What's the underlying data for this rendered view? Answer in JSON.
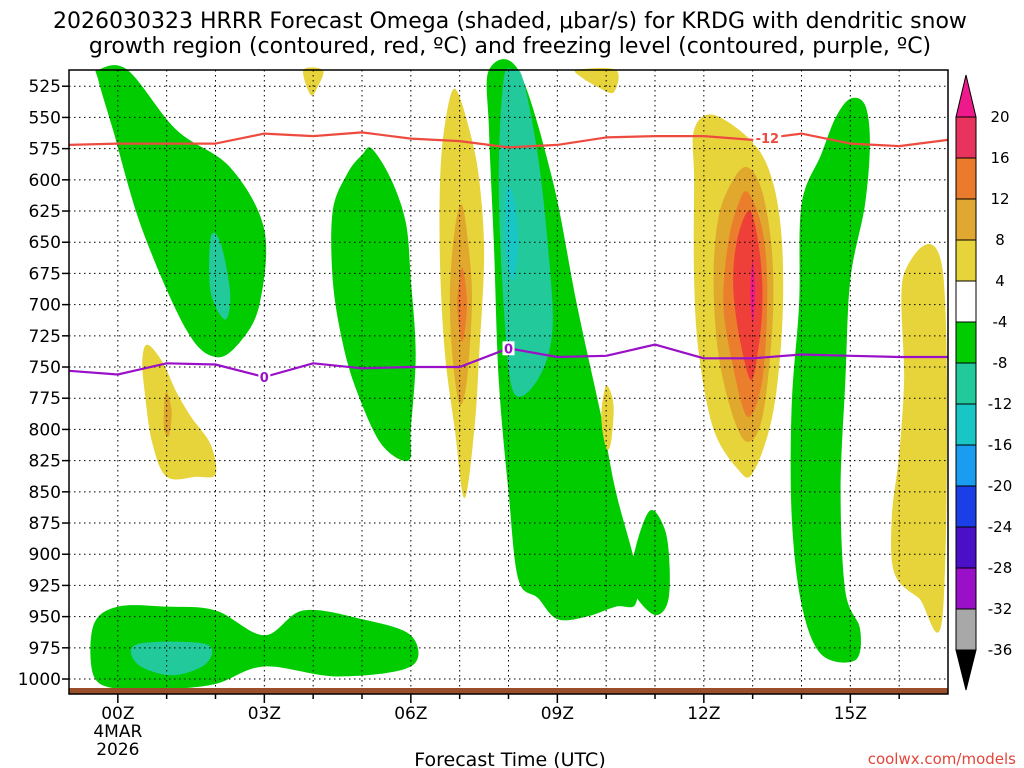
{
  "colors": {
    "green": "#00cc00",
    "teal": "#22c99a",
    "cyan": "#18c6c6",
    "yellow": "#e6d43a",
    "gold": "#e0a82c",
    "orange": "#ea7e2c",
    "red": "#ee4038",
    "magenta": "#ee1a8c",
    "dgz": "#ee4b40",
    "freezing": "#9a10c8",
    "ground": "#9a4e2a",
    "credit": "#e5463c"
  },
  "header": {
    "title_line1": "2026030323 HRRR Forecast Omega (shaded, μbar/s) for KRDG with dendritic snow",
    "title_line2": "growth region (contoured, red, ºC) and freezing level (contoured, purple, ºC)"
  },
  "footer": {
    "credit": "coolwx.com/models"
  },
  "chart_data": {
    "type": "time-height contour",
    "title": "2026030323 HRRR Forecast Omega (shaded, μbar/s) for KRDG with dendritic snow growth region (contoured, red, ºC) and freezing level (contoured, purple, ºC)",
    "xlabel": "Forecast Time (UTC)",
    "ylabel": "",
    "x_range_hours": [
      -1,
      17
    ],
    "y_range_hpa": [
      512,
      1012
    ],
    "y_ticks": [
      "525",
      "550",
      "575",
      "600",
      "625",
      "650",
      "675",
      "700",
      "725",
      "750",
      "775",
      "800",
      "825",
      "850",
      "875",
      "900",
      "925",
      "950",
      "975",
      "1000"
    ],
    "x_ticks": [
      {
        "hour": 0,
        "label": "00Z",
        "date": "4MAR",
        "year": "2026"
      },
      {
        "hour": 3,
        "label": "03Z"
      },
      {
        "hour": 6,
        "label": "06Z"
      },
      {
        "hour": 9,
        "label": "09Z"
      },
      {
        "hour": 12,
        "label": "12Z"
      },
      {
        "hour": 15,
        "label": "15Z"
      }
    ],
    "colorbar": {
      "labels": [
        "20",
        "16",
        "12",
        "8",
        "4",
        "-4",
        "-8",
        "-12",
        "-16",
        "-20",
        "-24",
        "-28",
        "-32",
        "-36"
      ],
      "bin_colors": [
        "#e8335e",
        "#ea7a2c",
        "#e0a830",
        "#e6d43a",
        "#ffffff",
        "#00cc00",
        "#22c99a",
        "#18c6c6",
        "#1a9cf0",
        "#1a3fe6",
        "#4a10c8",
        "#9a10c8",
        "#a8a8a8"
      ],
      "top_arrow": "#ee1a8c",
      "bottom_arrow": "#000000"
    },
    "contour_dgz": {
      "label": "-12",
      "color": "#ee4b40",
      "points": [
        [
          -1,
          572
        ],
        [
          0,
          571
        ],
        [
          2,
          571
        ],
        [
          3,
          563
        ],
        [
          4,
          565
        ],
        [
          5,
          562
        ],
        [
          6,
          567
        ],
        [
          7,
          569
        ],
        [
          8,
          574
        ],
        [
          9,
          572
        ],
        [
          10,
          566
        ],
        [
          11,
          565
        ],
        [
          12,
          565
        ],
        [
          13,
          568
        ],
        [
          14,
          563
        ],
        [
          15,
          571
        ],
        [
          16,
          573
        ],
        [
          17,
          568
        ]
      ]
    },
    "contour_freezing": {
      "label": "0",
      "color": "#9a10c8",
      "points": [
        [
          -1,
          753
        ],
        [
          0,
          756
        ],
        [
          1,
          747
        ],
        [
          2,
          748
        ],
        [
          3,
          758
        ],
        [
          4,
          747
        ],
        [
          5,
          751
        ],
        [
          6,
          750
        ],
        [
          7,
          750
        ],
        [
          8,
          735
        ],
        [
          9,
          742
        ],
        [
          10,
          741
        ],
        [
          11,
          732
        ],
        [
          12,
          743
        ],
        [
          13,
          743
        ],
        [
          14,
          740
        ],
        [
          15,
          741
        ],
        [
          16,
          742
        ],
        [
          17,
          742
        ]
      ]
    },
    "omega_regions": [
      {
        "level": -4,
        "color": "#00cc00",
        "points": [
          [
            -0.4,
            512
          ],
          [
            0.2,
            512
          ],
          [
            1.2,
            560
          ],
          [
            2.3,
            590
          ],
          [
            3.0,
            640
          ],
          [
            2.9,
            700
          ],
          [
            2.5,
            730
          ],
          [
            2.0,
            742
          ],
          [
            1.4,
            720
          ],
          [
            0.5,
            640
          ],
          [
            -0.1,
            560
          ],
          [
            -0.4,
            520
          ]
        ]
      },
      {
        "level": -8,
        "color": "#22c99a",
        "points": [
          [
            1.9,
            646
          ],
          [
            2.1,
            650
          ],
          [
            2.3,
            690
          ],
          [
            2.2,
            712
          ],
          [
            1.9,
            690
          ]
        ]
      },
      {
        "level": -4,
        "color": "#00cc00",
        "points": [
          [
            -0.5,
            957
          ],
          [
            0.0,
            942
          ],
          [
            1.0,
            942
          ],
          [
            2.0,
            945
          ],
          [
            3.0,
            965
          ],
          [
            3.8,
            945
          ],
          [
            5.0,
            952
          ],
          [
            6.0,
            965
          ],
          [
            6.0,
            990
          ],
          [
            4.5,
            998
          ],
          [
            3.0,
            990
          ],
          [
            2.0,
            1004
          ],
          [
            1.0,
            1008
          ],
          [
            0.0,
            1008
          ],
          [
            -0.5,
            997
          ]
        ]
      },
      {
        "level": -8,
        "color": "#22c99a",
        "points": [
          [
            0.4,
            972
          ],
          [
            1.8,
            972
          ],
          [
            1.8,
            988
          ],
          [
            1.1,
            997
          ],
          [
            0.4,
            988
          ]
        ]
      },
      {
        "level": -4,
        "color": "#00cc00",
        "points": [
          [
            5.2,
            575
          ],
          [
            5.6,
            600
          ],
          [
            5.9,
            635
          ],
          [
            6.0,
            680
          ],
          [
            6.1,
            740
          ],
          [
            6.0,
            800
          ],
          [
            5.95,
            825
          ],
          [
            5.4,
            812
          ],
          [
            4.9,
            770
          ],
          [
            4.6,
            730
          ],
          [
            4.4,
            680
          ],
          [
            4.4,
            625
          ],
          [
            4.7,
            595
          ],
          [
            5.0,
            580
          ]
        ]
      },
      {
        "level": 4,
        "color": "#e6d43a",
        "points": [
          [
            6.9,
            527
          ],
          [
            7.2,
            560
          ],
          [
            7.4,
            600
          ],
          [
            7.5,
            660
          ],
          [
            7.4,
            740
          ],
          [
            7.3,
            800
          ],
          [
            7.1,
            855
          ],
          [
            6.9,
            800
          ],
          [
            6.7,
            740
          ],
          [
            6.6,
            670
          ],
          [
            6.6,
            600
          ],
          [
            6.7,
            555
          ]
        ]
      },
      {
        "level": 8,
        "color": "#e0a82c",
        "points": [
          [
            7.05,
            620
          ],
          [
            7.2,
            660
          ],
          [
            7.25,
            700
          ],
          [
            7.15,
            760
          ],
          [
            7.0,
            780
          ],
          [
            6.85,
            740
          ],
          [
            6.8,
            690
          ],
          [
            6.9,
            640
          ]
        ]
      },
      {
        "level": 12,
        "color": "#ea7e2c",
        "points": [
          [
            7.05,
            670
          ],
          [
            7.15,
            700
          ],
          [
            7.05,
            730
          ],
          [
            6.95,
            700
          ]
        ]
      },
      {
        "level": -4,
        "color": "#00cc00",
        "points": [
          [
            7.6,
            512
          ],
          [
            8.2,
            512
          ],
          [
            8.9,
            600
          ],
          [
            9.4,
            700
          ],
          [
            9.9,
            790
          ],
          [
            10.2,
            850
          ],
          [
            10.6,
            910
          ],
          [
            10.6,
            940
          ],
          [
            10.2,
            942
          ],
          [
            9.6,
            950
          ],
          [
            9.0,
            952
          ],
          [
            8.6,
            935
          ],
          [
            8.2,
            920
          ],
          [
            8.0,
            850
          ],
          [
            7.8,
            760
          ],
          [
            7.7,
            650
          ],
          [
            7.6,
            560
          ]
        ]
      },
      {
        "level": -8,
        "color": "#22c99a",
        "points": [
          [
            7.9,
            520
          ],
          [
            8.1,
            512
          ],
          [
            8.3,
            520
          ],
          [
            8.6,
            580
          ],
          [
            8.8,
            650
          ],
          [
            8.9,
            720
          ],
          [
            8.6,
            760
          ],
          [
            8.1,
            770
          ],
          [
            7.9,
            700
          ],
          [
            7.8,
            600
          ]
        ]
      },
      {
        "level": -12,
        "color": "#18c6c6",
        "points": [
          [
            7.95,
            610
          ],
          [
            8.1,
            612
          ],
          [
            8.2,
            650
          ],
          [
            8.1,
            680
          ],
          [
            7.95,
            660
          ]
        ]
      },
      {
        "level": -4,
        "color": "#00cc00",
        "points": [
          [
            10.9,
            865
          ],
          [
            11.2,
            880
          ],
          [
            11.3,
            910
          ],
          [
            11.25,
            940
          ],
          [
            10.95,
            948
          ],
          [
            10.5,
            925
          ],
          [
            10.6,
            895
          ]
        ]
      },
      {
        "level": 4,
        "color": "#e6d43a",
        "points": [
          [
            10.0,
            765
          ],
          [
            10.15,
            780
          ],
          [
            10.1,
            810
          ],
          [
            10.0,
            815
          ],
          [
            9.9,
            790
          ]
        ]
      },
      {
        "level": 4,
        "color": "#e6d43a",
        "points": [
          [
            11.8,
            560
          ],
          [
            12.2,
            548
          ],
          [
            13.0,
            570
          ],
          [
            13.4,
            600
          ],
          [
            13.6,
            650
          ],
          [
            13.6,
            720
          ],
          [
            13.4,
            790
          ],
          [
            13.0,
            835
          ],
          [
            12.7,
            832
          ],
          [
            12.2,
            800
          ],
          [
            11.9,
            740
          ],
          [
            11.8,
            680
          ],
          [
            11.8,
            600
          ]
        ]
      },
      {
        "level": 8,
        "color": "#e0a82c",
        "points": [
          [
            12.9,
            590
          ],
          [
            13.2,
            610
          ],
          [
            13.4,
            660
          ],
          [
            13.4,
            720
          ],
          [
            13.2,
            790
          ],
          [
            12.9,
            810
          ],
          [
            12.6,
            790
          ],
          [
            12.3,
            740
          ],
          [
            12.2,
            680
          ],
          [
            12.3,
            630
          ],
          [
            12.6,
            600
          ]
        ]
      },
      {
        "level": 12,
        "color": "#ea7e2c",
        "points": [
          [
            12.9,
            610
          ],
          [
            13.2,
            640
          ],
          [
            13.3,
            690
          ],
          [
            13.2,
            760
          ],
          [
            12.9,
            790
          ],
          [
            12.6,
            750
          ],
          [
            12.4,
            700
          ],
          [
            12.5,
            650
          ],
          [
            12.7,
            620
          ]
        ]
      },
      {
        "level": 16,
        "color": "#ee4038",
        "points": [
          [
            12.95,
            625
          ],
          [
            13.15,
            660
          ],
          [
            13.2,
            700
          ],
          [
            13.1,
            740
          ],
          [
            12.95,
            760
          ],
          [
            12.7,
            720
          ],
          [
            12.6,
            680
          ],
          [
            12.7,
            645
          ]
        ]
      },
      {
        "level": 20,
        "color": "#ee1a8c",
        "points": [
          [
            13.0,
            665
          ],
          [
            13.05,
            690
          ],
          [
            13.0,
            715
          ],
          [
            12.95,
            690
          ]
        ]
      },
      {
        "level": -4,
        "color": "#00cc00",
        "points": [
          [
            15.0,
            535
          ],
          [
            15.3,
            540
          ],
          [
            15.4,
            570
          ],
          [
            15.3,
            620
          ],
          [
            15.0,
            680
          ],
          [
            14.9,
            760
          ],
          [
            14.8,
            850
          ],
          [
            14.9,
            930
          ],
          [
            15.2,
            960
          ],
          [
            15.1,
            985
          ],
          [
            14.4,
            980
          ],
          [
            14.0,
            940
          ],
          [
            13.8,
            870
          ],
          [
            13.8,
            780
          ],
          [
            13.95,
            700
          ],
          [
            14.0,
            620
          ],
          [
            14.4,
            580
          ],
          [
            14.7,
            550
          ]
        ]
      },
      {
        "level": 4,
        "color": "#e6d43a",
        "points": [
          [
            16.1,
            675
          ],
          [
            16.9,
            675
          ],
          [
            16.9,
            945
          ],
          [
            16.4,
            935
          ],
          [
            15.9,
            915
          ],
          [
            15.85,
            870
          ],
          [
            16.0,
            820
          ],
          [
            16.1,
            760
          ]
        ]
      },
      {
        "level": 4,
        "color": "#e6d43a",
        "points": [
          [
            0.6,
            732
          ],
          [
            0.9,
            745
          ],
          [
            1.2,
            770
          ],
          [
            1.5,
            790
          ],
          [
            1.9,
            812
          ],
          [
            2.0,
            836
          ],
          [
            1.6,
            838
          ],
          [
            1.0,
            838
          ],
          [
            0.7,
            810
          ],
          [
            0.55,
            770
          ],
          [
            0.5,
            745
          ]
        ]
      },
      {
        "level": 8,
        "color": "#e0a82c",
        "points": [
          [
            1.0,
            770
          ],
          [
            1.1,
            785
          ],
          [
            1.05,
            805
          ],
          [
            0.95,
            800
          ],
          [
            0.95,
            780
          ]
        ]
      },
      {
        "level": 4,
        "color": "#e6d43a",
        "points": [
          [
            3.8,
            512
          ],
          [
            4.2,
            512
          ],
          [
            4.1,
            525
          ],
          [
            3.95,
            532
          ]
        ]
      },
      {
        "level": 4,
        "color": "#e6d43a",
        "points": [
          [
            9.4,
            512
          ],
          [
            10.2,
            512
          ],
          [
            10.15,
            530
          ],
          [
            9.8,
            525
          ],
          [
            9.5,
            518
          ]
        ]
      }
    ]
  }
}
